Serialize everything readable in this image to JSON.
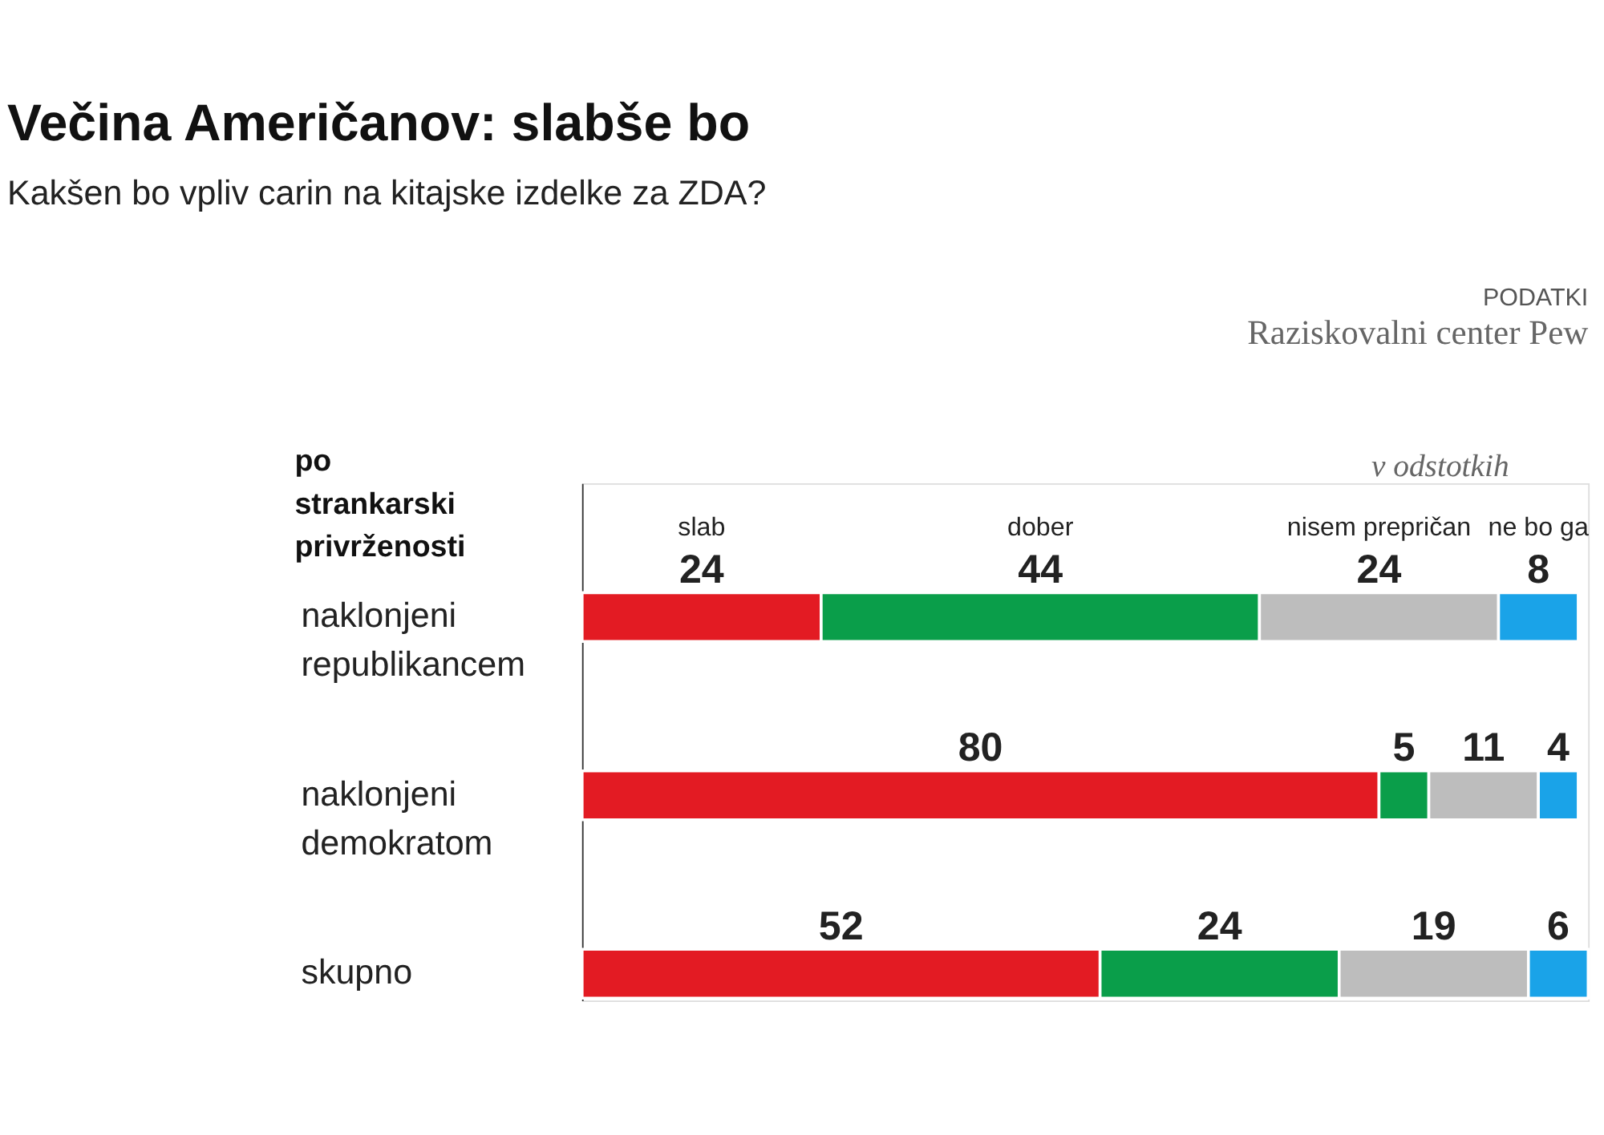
{
  "chart_data": {
    "type": "bar",
    "orientation": "horizontal",
    "stacked": true,
    "title": "Večina Američanov: slabše bo",
    "subtitle": "Kakšen bo vpliv carin na kitajske izdelke za ZDA?",
    "categories": [
      "naklonjeni republikancem",
      "naklonjeni demokratom",
      "skupno"
    ],
    "series": [
      {
        "name": "slab",
        "color": "#e31b23",
        "values": [
          24,
          80,
          52
        ]
      },
      {
        "name": "dober",
        "color": "#0a9e4a",
        "values": [
          44,
          5,
          24
        ]
      },
      {
        "name": "nisem prepričan",
        "color": "#bdbdbd",
        "values": [
          24,
          11,
          19
        ]
      },
      {
        "name": "ne bo ga",
        "color": "#1aa3e8",
        "values": [
          8,
          4,
          6
        ]
      }
    ],
    "data_labels": true,
    "legend": false,
    "grid": false,
    "tick_labels": "y",
    "annotations": [
      "po strankarski privrženosti",
      "v odstotkih",
      "PODATKI",
      "Raziskovalni center Pew"
    ]
  }
}
